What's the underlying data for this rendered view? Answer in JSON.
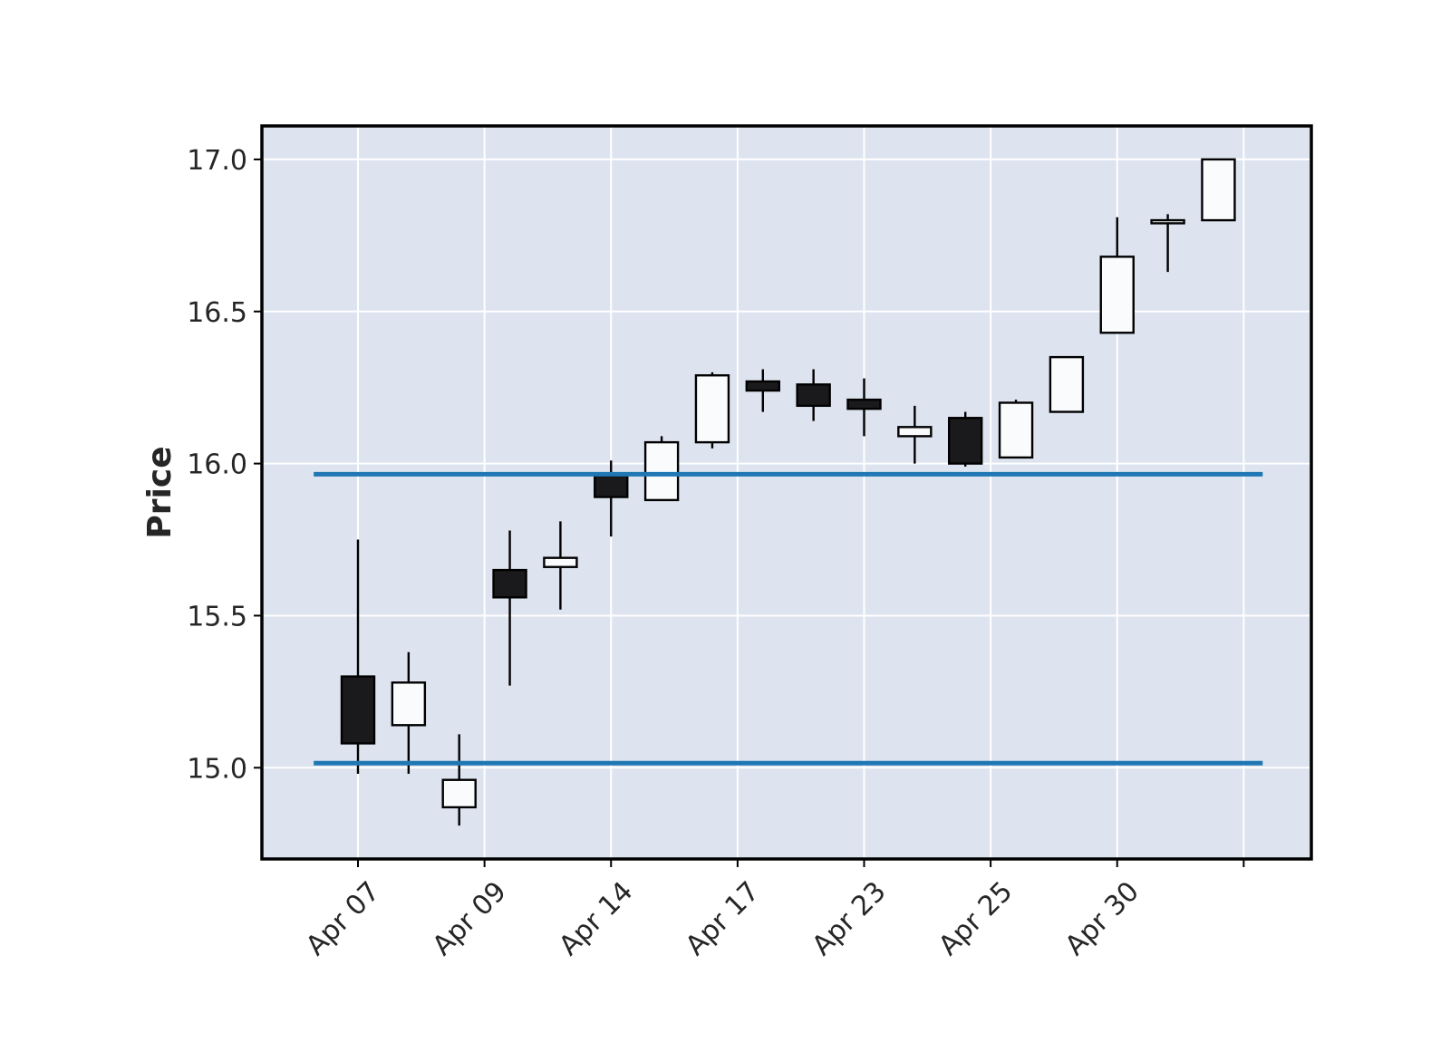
{
  "chart_data": {
    "type": "candlestick",
    "title": "",
    "xlabel": "",
    "ylabel": "Price",
    "ylim": [
      14.7,
      17.11
    ],
    "yticks": [
      15.0,
      15.5,
      16.0,
      16.5,
      17.0
    ],
    "ytick_labels": [
      "15.0",
      "15.5",
      "16.0",
      "16.5",
      "17.0"
    ],
    "xtick_labels": [
      "Apr 07",
      "Apr 09",
      "Apr 14",
      "Apr 17",
      "Apr 23",
      "Apr 25",
      "Apr 30"
    ],
    "xtick_candle_index": [
      0,
      2.5,
      5,
      7.5,
      10,
      12.5,
      15,
      17.5
    ],
    "grid": true,
    "colors": {
      "background": "#dde3ef",
      "grid": "#ffffff",
      "up_candle": "#f9fbfd",
      "down_candle": "#1a1a1c",
      "edge": "#000000",
      "hline": "#1f77b4"
    },
    "candles": [
      {
        "open": 15.3,
        "high": 15.75,
        "low": 14.98,
        "close": 15.08
      },
      {
        "open": 15.14,
        "high": 15.38,
        "low": 14.98,
        "close": 15.28
      },
      {
        "open": 14.87,
        "high": 15.11,
        "low": 14.81,
        "close": 14.96
      },
      {
        "open": 15.65,
        "high": 15.78,
        "low": 15.27,
        "close": 15.56
      },
      {
        "open": 15.66,
        "high": 15.81,
        "low": 15.52,
        "close": 15.69
      },
      {
        "open": 15.96,
        "high": 16.01,
        "low": 15.76,
        "close": 15.89
      },
      {
        "open": 15.88,
        "high": 16.09,
        "low": 15.88,
        "close": 16.07
      },
      {
        "open": 16.07,
        "high": 16.3,
        "low": 16.05,
        "close": 16.29
      },
      {
        "open": 16.27,
        "high": 16.31,
        "low": 16.17,
        "close": 16.24
      },
      {
        "open": 16.26,
        "high": 16.31,
        "low": 16.14,
        "close": 16.19
      },
      {
        "open": 16.21,
        "high": 16.28,
        "low": 16.09,
        "close": 16.18
      },
      {
        "open": 16.09,
        "high": 16.19,
        "low": 16.0,
        "close": 16.12
      },
      {
        "open": 16.15,
        "high": 16.17,
        "low": 15.99,
        "close": 16.0
      },
      {
        "open": 16.02,
        "high": 16.21,
        "low": 16.02,
        "close": 16.2
      },
      {
        "open": 16.17,
        "high": 16.35,
        "low": 16.17,
        "close": 16.35
      },
      {
        "open": 16.43,
        "high": 16.81,
        "low": 16.43,
        "close": 16.68
      },
      {
        "open": 16.79,
        "high": 16.82,
        "low": 16.63,
        "close": 16.8
      },
      {
        "open": 16.8,
        "high": 17.0,
        "low": 16.8,
        "close": 17.0
      }
    ],
    "hlines": [
      15.965,
      15.015
    ]
  }
}
